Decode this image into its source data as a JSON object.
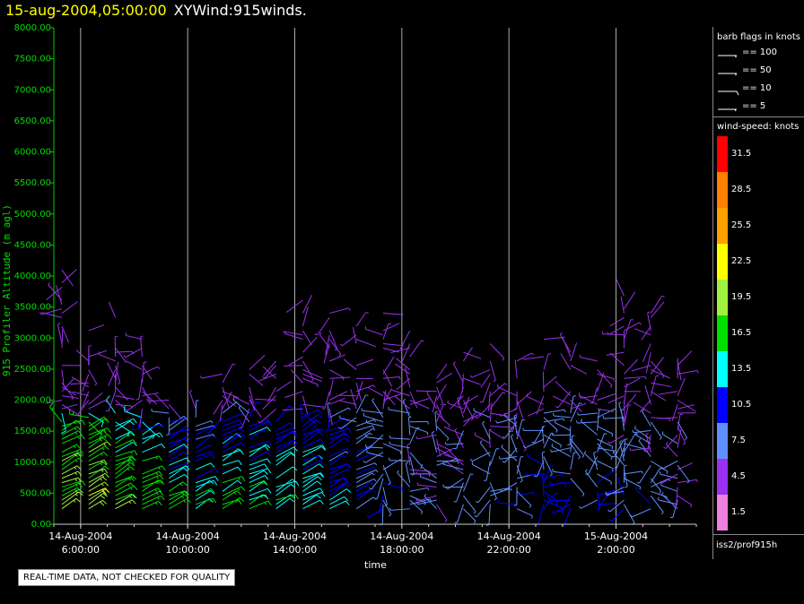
{
  "header": {
    "timestamp": "15-aug-2004,05:00:00",
    "name": "XYWind:915winds."
  },
  "footer": {
    "note": "REAL-TIME DATA, NOT CHECKED FOR QUALITY"
  },
  "source": "iss2/prof915h",
  "legend": {
    "barb_title": "barb flags in knots",
    "barbs": [
      {
        "label": "== 100",
        "knots": 100
      },
      {
        "label": "== 50",
        "knots": 50
      },
      {
        "label": "== 10",
        "knots": 10
      },
      {
        "label": "== 5",
        "knots": 5
      }
    ],
    "speed_title": "wind-speed: knots",
    "color_scale": [
      {
        "label": "31.5",
        "color": "#ff0000"
      },
      {
        "label": "28.5",
        "color": "#ff8000"
      },
      {
        "label": "25.5",
        "color": "#ffa000"
      },
      {
        "label": "22.5",
        "color": "#ffff00"
      },
      {
        "label": "19.5",
        "color": "#a0f040"
      },
      {
        "label": "16.5",
        "color": "#00e000"
      },
      {
        "label": "13.5",
        "color": "#00ffff"
      },
      {
        "label": "10.5",
        "color": "#0000ff"
      },
      {
        "label": "7.5",
        "color": "#6090ff"
      },
      {
        "label": "4.5",
        "color": "#9a30f0"
      },
      {
        "label": "1.5",
        "color": "#f080e0"
      }
    ]
  },
  "chart_data": {
    "type": "scatter",
    "title": "15-aug-2004,05:00:00  XYWind:915winds.",
    "xlabel": "time",
    "ylabel": "915 Profiler Altitude (m agl)",
    "x_ticks": [
      {
        "date": "14-Aug-2004",
        "time": "6:00:00"
      },
      {
        "date": "14-Aug-2004",
        "time": "10:00:00"
      },
      {
        "date": "14-Aug-2004",
        "time": "14:00:00"
      },
      {
        "date": "14-Aug-2004",
        "time": "18:00:00"
      },
      {
        "date": "14-Aug-2004",
        "time": "22:00:00"
      },
      {
        "date": "15-Aug-2004",
        "time": "2:00:00"
      }
    ],
    "xlim": [
      "2004-08-14 05:00",
      "2004-08-15 05:00"
    ],
    "y_ticks": [
      "0.00",
      "500.00",
      "1000.00",
      "1500.00",
      "2000.00",
      "2500.00",
      "3000.00",
      "3500.00",
      "4000.00",
      "4500.00",
      "5000.00",
      "5500.00",
      "6000.00",
      "6500.00",
      "7000.00",
      "7500.00",
      "8000.00"
    ],
    "ylim": [
      0,
      8000
    ],
    "grid": "vertical",
    "series_description_values": {
      "columns_hours_from_start": [
        0.3,
        1.3,
        2.3,
        3.3,
        4.3,
        5.3,
        6.3,
        7.3,
        8.3,
        9.3,
        10.3,
        11.3,
        12.3,
        13.3,
        14.3,
        15.3,
        16.3,
        17.3,
        18.3,
        19.3,
        20.3,
        21.3,
        22.3,
        23.3
      ],
      "profiles": [
        {
          "alt_max": 4200,
          "low_speed": 19
        },
        {
          "alt_max": 3800,
          "low_speed": 20
        },
        {
          "alt_max": 3400,
          "low_speed": 18
        },
        {
          "alt_max": 3000,
          "low_speed": 17
        },
        {
          "alt_max": 2000,
          "low_speed": 16
        },
        {
          "alt_max": 1900,
          "low_speed": 15
        },
        {
          "alt_max": 2500,
          "low_speed": 16
        },
        {
          "alt_max": 2600,
          "low_speed": 15
        },
        {
          "alt_max": 2900,
          "low_speed": 14
        },
        {
          "alt_max": 3700,
          "low_speed": 13
        },
        {
          "alt_max": 3500,
          "low_speed": 11
        },
        {
          "alt_max": 3300,
          "low_speed": 9
        },
        {
          "alt_max": 3500,
          "low_speed": 8
        },
        {
          "alt_max": 3200,
          "low_speed": 7
        },
        {
          "alt_max": 2900,
          "low_speed": 6
        },
        {
          "alt_max": 2900,
          "low_speed": 6
        },
        {
          "alt_max": 3000,
          "low_speed": 7
        },
        {
          "alt_max": 2700,
          "low_speed": 8
        },
        {
          "alt_max": 3000,
          "low_speed": 9
        },
        {
          "alt_max": 2900,
          "low_speed": 9
        },
        {
          "alt_max": 2800,
          "low_speed": 9
        },
        {
          "alt_max": 3800,
          "low_speed": 8
        },
        {
          "alt_max": 3400,
          "low_speed": 7
        },
        {
          "alt_max": 2800,
          "low_speed": 6
        }
      ]
    }
  }
}
